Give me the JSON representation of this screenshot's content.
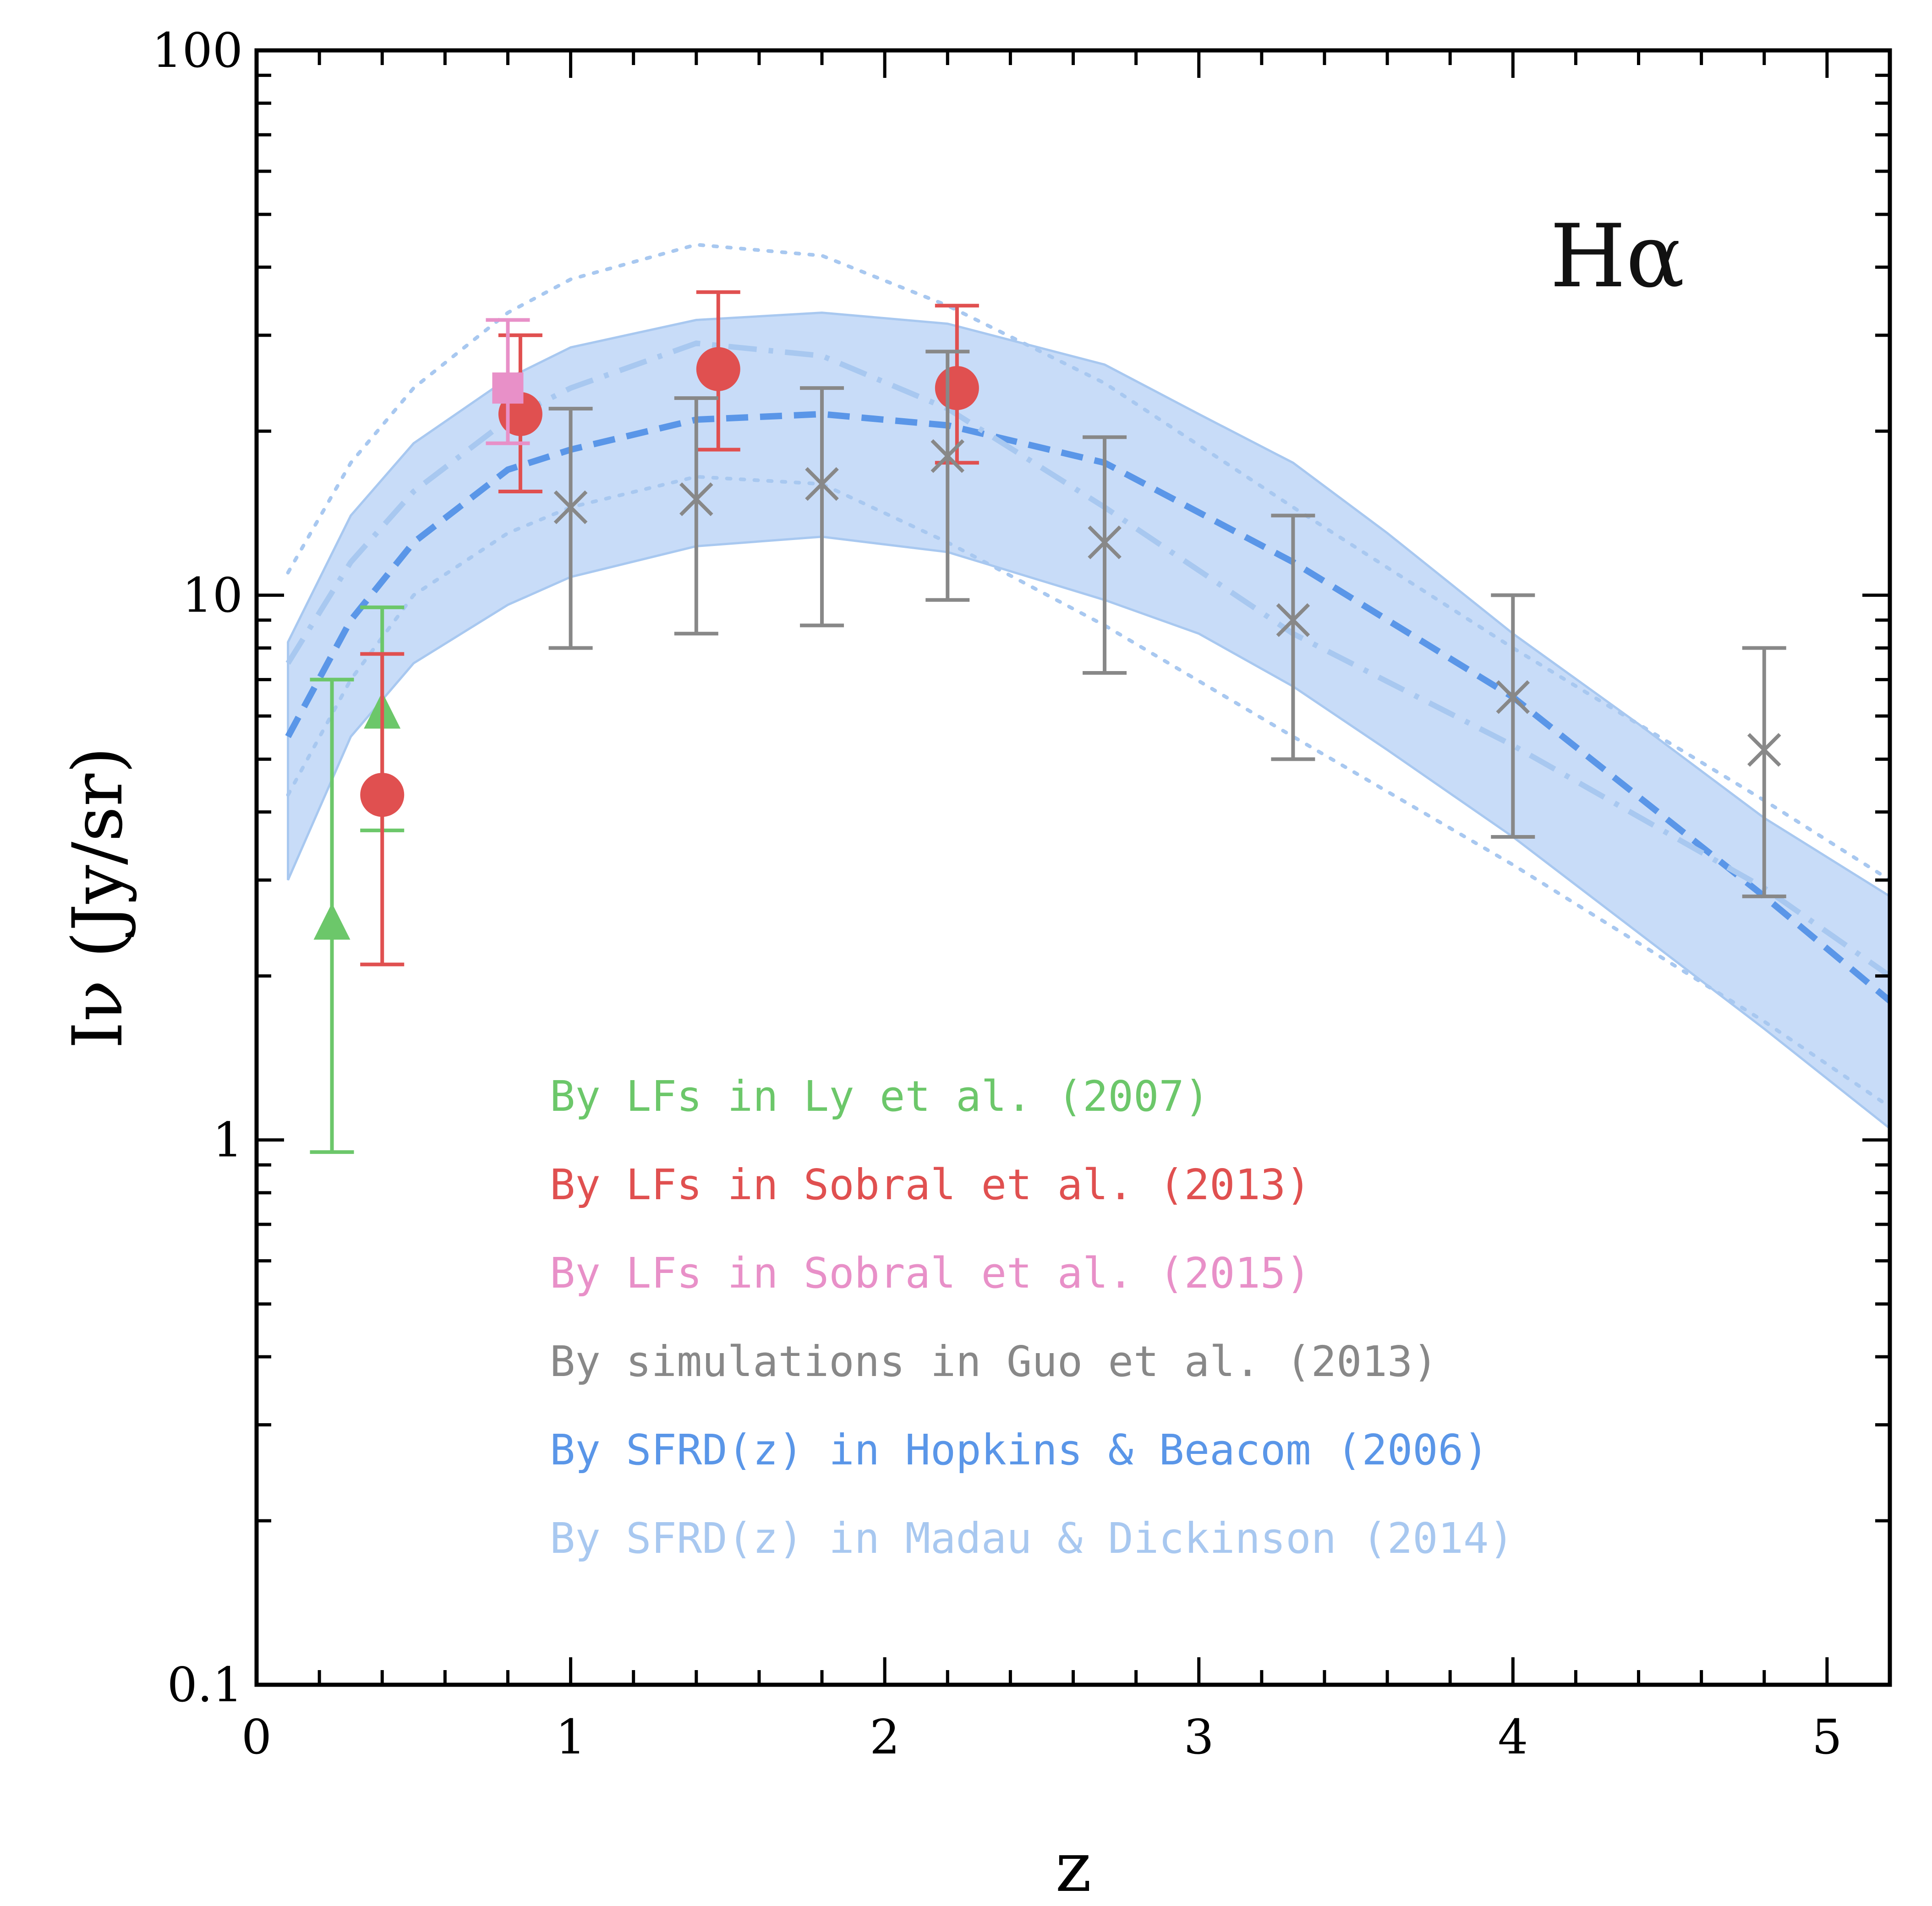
{
  "chart_data": {
    "type": "scatter",
    "title": "",
    "panel_label": "Hα",
    "xlabel": "z",
    "ylabel": "Iν (Jy/sr)",
    "xlim": [
      0,
      5.2
    ],
    "ylim": [
      0.1,
      100
    ],
    "yscale": "log",
    "x_ticks": [
      "0",
      "1",
      "2",
      "3",
      "4",
      "5"
    ],
    "y_ticks": [
      "0.1",
      "1",
      "10",
      "100"
    ],
    "grid": false,
    "legend_position": "bottom-center",
    "colors": {
      "green": "#6cc76a",
      "red": "#e05050",
      "pink": "#e890c8",
      "gray": "#888888",
      "blue": "#5a96e8",
      "lightblue": "#a8c8f0",
      "band": "#c8dcf8"
    },
    "series": [
      {
        "name": "By LFs in Ly et al. (2007)",
        "marker": "triangle",
        "color_key": "green",
        "points": [
          {
            "x": 0.24,
            "y": 2.5,
            "yerr_low": 0.95,
            "yerr_high": 7.0
          },
          {
            "x": 0.4,
            "y": 6.1,
            "yerr_low": 3.7,
            "yerr_high": 9.5
          }
        ]
      },
      {
        "name": "By LFs in Sobral et al. (2013)",
        "marker": "circle",
        "color_key": "red",
        "points": [
          {
            "x": 0.4,
            "y": 4.3,
            "yerr_low": 2.1,
            "yerr_high": 7.8
          },
          {
            "x": 0.84,
            "y": 21.5,
            "yerr_low": 15.5,
            "yerr_high": 30.0
          },
          {
            "x": 1.47,
            "y": 26.0,
            "yerr_low": 18.5,
            "yerr_high": 36.0
          },
          {
            "x": 2.23,
            "y": 24.0,
            "yerr_low": 17.5,
            "yerr_high": 34.0
          }
        ]
      },
      {
        "name": "By LFs in Sobral et al. (2015)",
        "marker": "square",
        "color_key": "pink",
        "points": [
          {
            "x": 0.8,
            "y": 24.0,
            "yerr_low": 19.0,
            "yerr_high": 32.0
          }
        ]
      },
      {
        "name": "By simulations in Guo et al. (2013)",
        "marker": "x",
        "color_key": "gray",
        "points": [
          {
            "x": 1.0,
            "y": 14.5,
            "yerr_low": 8.0,
            "yerr_high": 22.0
          },
          {
            "x": 1.4,
            "y": 15.0,
            "yerr_low": 8.5,
            "yerr_high": 23.0
          },
          {
            "x": 1.8,
            "y": 16.0,
            "yerr_low": 8.8,
            "yerr_high": 24.0
          },
          {
            "x": 2.2,
            "y": 18.0,
            "yerr_low": 9.8,
            "yerr_high": 28.0
          },
          {
            "x": 2.7,
            "y": 12.5,
            "yerr_low": 7.2,
            "yerr_high": 19.5
          },
          {
            "x": 3.3,
            "y": 9.0,
            "yerr_low": 5.0,
            "yerr_high": 14.0
          },
          {
            "x": 4.0,
            "y": 6.5,
            "yerr_low": 3.6,
            "yerr_high": 10.0
          },
          {
            "x": 4.8,
            "y": 5.2,
            "yerr_low": 2.8,
            "yerr_high": 8.0
          }
        ]
      }
    ],
    "curves": [
      {
        "name": "By SFRD(z) in Hopkins & Beacom (2006)",
        "style": "dashed",
        "color_key": "blue",
        "x": [
          0.1,
          0.3,
          0.5,
          0.8,
          1.0,
          1.4,
          1.8,
          2.2,
          2.7,
          3.3,
          4.0,
          4.8,
          5.2
        ],
        "y": [
          5.5,
          9.0,
          12.5,
          17.0,
          18.5,
          21.0,
          21.5,
          20.5,
          17.5,
          11.5,
          6.5,
          2.8,
          1.8
        ]
      },
      {
        "name": "By SFRD(z) in Madau & Dickinson (2014)",
        "style": "dash-dot",
        "color_key": "lightblue",
        "x": [
          0.1,
          0.3,
          0.5,
          0.8,
          1.0,
          1.4,
          1.8,
          2.2,
          2.7,
          3.3,
          4.0,
          4.8,
          5.2
        ],
        "y": [
          7.5,
          11.5,
          15.5,
          21.0,
          24.0,
          29.0,
          27.5,
          22.0,
          14.5,
          8.5,
          5.3,
          2.9,
          2.0
        ]
      },
      {
        "style": "dotted",
        "color_key": "lightblue",
        "x": [
          0.1,
          0.3,
          0.5,
          0.8,
          1.0,
          1.4,
          1.8,
          2.2,
          2.7,
          3.3,
          4.0,
          4.8,
          5.2
        ],
        "y": [
          11.0,
          17.5,
          24.0,
          33.0,
          38.0,
          44.0,
          42.0,
          34.0,
          24.5,
          14.5,
          8.0,
          4.2,
          3.0
        ]
      },
      {
        "style": "dotted",
        "color_key": "lightblue",
        "x": [
          0.1,
          0.3,
          0.5,
          0.8,
          1.0,
          1.4,
          1.8,
          2.2,
          2.7,
          3.3,
          4.0,
          4.8,
          5.2
        ],
        "y": [
          4.3,
          7.0,
          10.0,
          13.0,
          14.5,
          16.5,
          16.0,
          12.5,
          8.8,
          5.5,
          3.2,
          1.65,
          1.15
        ]
      }
    ],
    "band": {
      "color_key": "band",
      "x": [
        0.1,
        0.3,
        0.5,
        0.8,
        1.0,
        1.4,
        1.8,
        2.2,
        2.7,
        3.0,
        3.3,
        3.6,
        4.0,
        4.4,
        4.8,
        5.2
      ],
      "upper": [
        8.2,
        14.0,
        19.0,
        25.0,
        28.5,
        32.0,
        33.0,
        31.5,
        26.5,
        21.5,
        17.5,
        13.0,
        8.5,
        5.8,
        3.9,
        2.8
      ],
      "lower": [
        3.0,
        5.5,
        7.5,
        9.6,
        10.8,
        12.3,
        12.8,
        12.0,
        9.8,
        8.5,
        6.8,
        5.2,
        3.6,
        2.4,
        1.6,
        1.05
      ]
    },
    "legend": [
      {
        "label": "By LFs in Ly et al. (2007)",
        "color_key": "green"
      },
      {
        "label": "By LFs in Sobral et al. (2013)",
        "color_key": "red"
      },
      {
        "label": "By LFs in Sobral et al. (2015)",
        "color_key": "pink"
      },
      {
        "label": "By simulations in Guo et al. (2013)",
        "color_key": "gray"
      },
      {
        "label": "By SFRD(z) in Hopkins & Beacom (2006)",
        "color_key": "blue"
      },
      {
        "label": "By SFRD(z) in Madau & Dickinson (2014)",
        "color_key": "lightblue"
      }
    ]
  }
}
